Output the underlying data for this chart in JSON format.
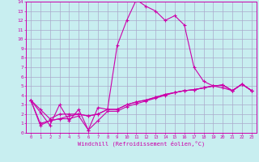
{
  "title": "",
  "xlabel": "Windchill (Refroidissement éolien,°C)",
  "ylabel": "",
  "background_color": "#c8eef0",
  "grid_color": "#aaaacc",
  "line_color": "#cc00aa",
  "xlim": [
    -0.5,
    23.5
  ],
  "ylim": [
    0,
    14
  ],
  "xticks": [
    0,
    1,
    2,
    3,
    4,
    5,
    6,
    7,
    8,
    9,
    10,
    11,
    12,
    13,
    14,
    15,
    16,
    17,
    18,
    19,
    20,
    21,
    22,
    23
  ],
  "yticks": [
    0,
    1,
    2,
    3,
    4,
    5,
    6,
    7,
    8,
    9,
    10,
    11,
    12,
    13,
    14
  ],
  "line1_x": [
    0,
    1,
    2,
    3,
    4,
    5,
    6,
    7,
    8,
    9,
    10,
    11,
    12,
    13,
    14,
    15,
    16,
    17,
    18,
    19,
    20,
    21,
    22,
    23
  ],
  "line1_y": [
    3.5,
    2.2,
    0.8,
    3.0,
    1.3,
    2.5,
    0.3,
    2.7,
    2.5,
    9.3,
    12.0,
    14.2,
    13.5,
    13.0,
    12.0,
    12.5,
    11.5,
    7.0,
    5.5,
    5.0,
    4.8,
    4.5,
    5.2,
    4.5
  ],
  "line2_x": [
    0,
    1,
    2,
    3,
    4,
    5,
    6,
    7,
    8,
    9,
    10,
    11,
    12,
    13,
    14,
    15,
    16,
    17,
    18,
    19,
    20,
    21,
    22,
    23
  ],
  "line2_y": [
    3.5,
    0.8,
    1.3,
    1.5,
    1.5,
    1.8,
    0.3,
    1.3,
    2.3,
    2.3,
    2.8,
    3.1,
    3.4,
    3.7,
    4.0,
    4.3,
    4.5,
    4.6,
    4.8,
    5.0,
    5.1,
    4.5,
    5.2,
    4.5
  ],
  "line3_x": [
    0,
    1,
    2,
    3,
    4,
    5,
    6,
    7,
    8,
    9,
    10,
    11,
    12,
    13,
    14,
    15,
    16,
    17,
    18,
    19,
    20,
    21,
    22,
    23
  ],
  "line3_y": [
    3.5,
    1.0,
    1.3,
    1.5,
    1.8,
    2.0,
    1.8,
    2.0,
    2.5,
    2.5,
    3.0,
    3.3,
    3.5,
    3.8,
    4.1,
    4.3,
    4.5,
    4.6,
    4.8,
    5.0,
    5.1,
    4.5,
    5.2,
    4.5
  ],
  "line4_x": [
    0,
    1,
    2,
    3,
    4,
    5,
    6,
    7,
    8,
    9,
    10,
    11,
    12,
    13,
    14,
    15,
    16,
    17,
    18,
    19,
    20,
    21,
    22,
    23
  ],
  "line4_y": [
    3.5,
    2.5,
    1.5,
    2.0,
    2.0,
    2.0,
    1.8,
    2.0,
    2.5,
    2.5,
    3.0,
    3.3,
    3.5,
    3.8,
    4.1,
    4.3,
    4.5,
    4.6,
    4.8,
    5.0,
    5.1,
    4.5,
    5.2,
    4.5
  ]
}
